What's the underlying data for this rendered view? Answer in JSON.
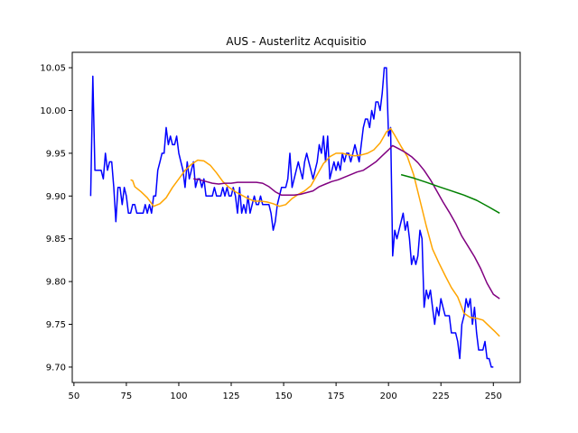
{
  "chart_data": {
    "type": "line",
    "title": "AUS - Austerlitz Acquisitio",
    "xlabel": "",
    "ylabel": "",
    "xlim": [
      49.2,
      262.8
    ],
    "ylim": [
      9.682,
      10.068
    ],
    "x_ticks": [
      50,
      75,
      100,
      125,
      150,
      175,
      200,
      225,
      250
    ],
    "y_ticks": [
      9.7,
      9.75,
      9.8,
      9.85,
      9.9,
      9.95,
      10.0,
      10.05
    ],
    "x_tick_labels": [
      "50",
      "75",
      "100",
      "125",
      "150",
      "175",
      "200",
      "225",
      "250"
    ],
    "y_tick_labels": [
      "9.70",
      "9.75",
      "9.80",
      "9.85",
      "9.90",
      "9.95",
      "10.00",
      "10.05"
    ],
    "grid": false,
    "legend": "none",
    "series": [
      {
        "color": "#0000ff",
        "points": [
          [
            58,
            9.9
          ],
          [
            59,
            10.04
          ],
          [
            60,
            9.93
          ],
          [
            61,
            9.93
          ],
          [
            62,
            9.93
          ],
          [
            63,
            9.93
          ],
          [
            64,
            9.92
          ],
          [
            65,
            9.95
          ],
          [
            66,
            9.93
          ],
          [
            67,
            9.94
          ],
          [
            68,
            9.94
          ],
          [
            69,
            9.91
          ],
          [
            70,
            9.87
          ],
          [
            71,
            9.91
          ],
          [
            72,
            9.91
          ],
          [
            73,
            9.89
          ],
          [
            74,
            9.91
          ],
          [
            75,
            9.9
          ],
          [
            76,
            9.88
          ],
          [
            77,
            9.88
          ],
          [
            78,
            9.89
          ],
          [
            79,
            9.89
          ],
          [
            80,
            9.88
          ],
          [
            81,
            9.88
          ],
          [
            82,
            9.88
          ],
          [
            83,
            9.88
          ],
          [
            84,
            9.89
          ],
          [
            85,
            9.88
          ],
          [
            86,
            9.89
          ],
          [
            87,
            9.88
          ],
          [
            88,
            9.9
          ],
          [
            89,
            9.9
          ],
          [
            90,
            9.93
          ],
          [
            91,
            9.94
          ],
          [
            92,
            9.95
          ],
          [
            93,
            9.95
          ],
          [
            94,
            9.98
          ],
          [
            95,
            9.96
          ],
          [
            96,
            9.97
          ],
          [
            97,
            9.96
          ],
          [
            98,
            9.96
          ],
          [
            99,
            9.97
          ],
          [
            100,
            9.95
          ],
          [
            101,
            9.94
          ],
          [
            102,
            9.93
          ],
          [
            103,
            9.91
          ],
          [
            104,
            9.94
          ],
          [
            105,
            9.92
          ],
          [
            106,
            9.93
          ],
          [
            107,
            9.94
          ],
          [
            108,
            9.91
          ],
          [
            109,
            9.92
          ],
          [
            110,
            9.92
          ],
          [
            111,
            9.91
          ],
          [
            112,
            9.92
          ],
          [
            113,
            9.9
          ],
          [
            114,
            9.9
          ],
          [
            115,
            9.9
          ],
          [
            116,
            9.9
          ],
          [
            117,
            9.91
          ],
          [
            118,
            9.9
          ],
          [
            119,
            9.9
          ],
          [
            120,
            9.9
          ],
          [
            121,
            9.91
          ],
          [
            122,
            9.9
          ],
          [
            123,
            9.91
          ],
          [
            124,
            9.9
          ],
          [
            125,
            9.9
          ],
          [
            126,
            9.91
          ],
          [
            127,
            9.9
          ],
          [
            128,
            9.88
          ],
          [
            129,
            9.91
          ],
          [
            130,
            9.88
          ],
          [
            131,
            9.89
          ],
          [
            132,
            9.88
          ],
          [
            133,
            9.9
          ],
          [
            134,
            9.88
          ],
          [
            135,
            9.89
          ],
          [
            136,
            9.9
          ],
          [
            137,
            9.89
          ],
          [
            138,
            9.89
          ],
          [
            139,
            9.9
          ],
          [
            140,
            9.89
          ],
          [
            141,
            9.89
          ],
          [
            142,
            9.89
          ],
          [
            143,
            9.89
          ],
          [
            144,
            9.88
          ],
          [
            145,
            9.86
          ],
          [
            146,
            9.87
          ],
          [
            147,
            9.89
          ],
          [
            148,
            9.9
          ],
          [
            149,
            9.91
          ],
          [
            150,
            9.91
          ],
          [
            151,
            9.91
          ],
          [
            152,
            9.92
          ],
          [
            153,
            9.95
          ],
          [
            154,
            9.91
          ],
          [
            155,
            9.92
          ],
          [
            156,
            9.93
          ],
          [
            157,
            9.94
          ],
          [
            158,
            9.93
          ],
          [
            159,
            9.92
          ],
          [
            160,
            9.94
          ],
          [
            161,
            9.95
          ],
          [
            162,
            9.94
          ],
          [
            163,
            9.93
          ],
          [
            164,
            9.92
          ],
          [
            165,
            9.93
          ],
          [
            166,
            9.94
          ],
          [
            167,
            9.96
          ],
          [
            168,
            9.95
          ],
          [
            169,
            9.97
          ],
          [
            170,
            9.94
          ],
          [
            171,
            9.97
          ],
          [
            172,
            9.92
          ],
          [
            173,
            9.93
          ],
          [
            174,
            9.94
          ],
          [
            175,
            9.93
          ],
          [
            176,
            9.94
          ],
          [
            177,
            9.93
          ],
          [
            178,
            9.95
          ],
          [
            179,
            9.94
          ],
          [
            180,
            9.95
          ],
          [
            181,
            9.95
          ],
          [
            182,
            9.94
          ],
          [
            183,
            9.95
          ],
          [
            184,
            9.96
          ],
          [
            185,
            9.95
          ],
          [
            186,
            9.94
          ],
          [
            187,
            9.96
          ],
          [
            188,
            9.98
          ],
          [
            189,
            9.99
          ],
          [
            190,
            9.99
          ],
          [
            191,
            9.98
          ],
          [
            192,
            10.0
          ],
          [
            193,
            9.99
          ],
          [
            194,
            10.01
          ],
          [
            195,
            10.01
          ],
          [
            196,
            10.0
          ],
          [
            197,
            10.02
          ],
          [
            198,
            10.05
          ],
          [
            199,
            10.05
          ],
          [
            200,
            9.97
          ],
          [
            201,
            9.98
          ],
          [
            202,
            9.83
          ],
          [
            203,
            9.86
          ],
          [
            204,
            9.85
          ],
          [
            205,
            9.86
          ],
          [
            206,
            9.87
          ],
          [
            207,
            9.88
          ],
          [
            208,
            9.86
          ],
          [
            209,
            9.87
          ],
          [
            210,
            9.85
          ],
          [
            211,
            9.82
          ],
          [
            212,
            9.83
          ],
          [
            213,
            9.82
          ],
          [
            214,
            9.83
          ],
          [
            215,
            9.86
          ],
          [
            216,
            9.85
          ],
          [
            217,
            9.77
          ],
          [
            218,
            9.79
          ],
          [
            219,
            9.78
          ],
          [
            220,
            9.79
          ],
          [
            221,
            9.77
          ],
          [
            222,
            9.75
          ],
          [
            223,
            9.77
          ],
          [
            224,
            9.76
          ],
          [
            225,
            9.78
          ],
          [
            226,
            9.77
          ],
          [
            227,
            9.76
          ],
          [
            228,
            9.76
          ],
          [
            229,
            9.76
          ],
          [
            230,
            9.74
          ],
          [
            231,
            9.74
          ],
          [
            232,
            9.74
          ],
          [
            233,
            9.73
          ],
          [
            234,
            9.71
          ],
          [
            235,
            9.75
          ],
          [
            236,
            9.76
          ],
          [
            237,
            9.78
          ],
          [
            238,
            9.77
          ],
          [
            239,
            9.78
          ],
          [
            240,
            9.75
          ],
          [
            241,
            9.77
          ],
          [
            242,
            9.74
          ],
          [
            243,
            9.72
          ],
          [
            244,
            9.72
          ],
          [
            245,
            9.72
          ],
          [
            246,
            9.73
          ],
          [
            247,
            9.71
          ],
          [
            248,
            9.71
          ],
          [
            249,
            9.7
          ],
          [
            250,
            9.7
          ]
        ]
      },
      {
        "color": "#ffa500",
        "points": [
          [
            77,
            9.919
          ],
          [
            78,
            9.918
          ],
          [
            79,
            9.911
          ],
          [
            82,
            9.905
          ],
          [
            85,
            9.898
          ],
          [
            88,
            9.888
          ],
          [
            91,
            9.891
          ],
          [
            94,
            9.898
          ],
          [
            97,
            9.91
          ],
          [
            100,
            9.92
          ],
          [
            103,
            9.93
          ],
          [
            106,
            9.937
          ],
          [
            109,
            9.942
          ],
          [
            112,
            9.941
          ],
          [
            115,
            9.936
          ],
          [
            118,
            9.927
          ],
          [
            121,
            9.917
          ],
          [
            124,
            9.91
          ],
          [
            127,
            9.905
          ],
          [
            130,
            9.901
          ],
          [
            133,
            9.897
          ],
          [
            136,
            9.894
          ],
          [
            139,
            9.894
          ],
          [
            142,
            9.893
          ],
          [
            145,
            9.891
          ],
          [
            148,
            9.888
          ],
          [
            151,
            9.89
          ],
          [
            154,
            9.897
          ],
          [
            157,
            9.902
          ],
          [
            160,
            9.906
          ],
          [
            163,
            9.912
          ],
          [
            166,
            9.925
          ],
          [
            169,
            9.938
          ],
          [
            172,
            9.946
          ],
          [
            175,
            9.95
          ],
          [
            178,
            9.95
          ],
          [
            181,
            9.948
          ],
          [
            184,
            9.947
          ],
          [
            187,
            9.948
          ],
          [
            190,
            9.95
          ],
          [
            193,
            9.954
          ],
          [
            196,
            9.962
          ],
          [
            199,
            9.975
          ],
          [
            201,
            9.979
          ],
          [
            203,
            9.971
          ],
          [
            206,
            9.958
          ],
          [
            209,
            9.946
          ],
          [
            212,
            9.925
          ],
          [
            215,
            9.895
          ],
          [
            218,
            9.865
          ],
          [
            221,
            9.838
          ],
          [
            224,
            9.822
          ],
          [
            227,
            9.807
          ],
          [
            230,
            9.793
          ],
          [
            233,
            9.782
          ],
          [
            236,
            9.763
          ],
          [
            239,
            9.758
          ],
          [
            242,
            9.757
          ],
          [
            245,
            9.755
          ],
          [
            248,
            9.748
          ],
          [
            251,
            9.741
          ],
          [
            253,
            9.736
          ]
        ]
      },
      {
        "color": "#800080",
        "points": [
          [
            107,
            9.92
          ],
          [
            110,
            9.919
          ],
          [
            113,
            9.917
          ],
          [
            116,
            9.915
          ],
          [
            119,
            9.914
          ],
          [
            122,
            9.915
          ],
          [
            125,
            9.915
          ],
          [
            128,
            9.916
          ],
          [
            131,
            9.916
          ],
          [
            134,
            9.916
          ],
          [
            137,
            9.916
          ],
          [
            140,
            9.915
          ],
          [
            143,
            9.911
          ],
          [
            146,
            9.905
          ],
          [
            149,
            9.901
          ],
          [
            152,
            9.901
          ],
          [
            155,
            9.901
          ],
          [
            158,
            9.902
          ],
          [
            161,
            9.904
          ],
          [
            164,
            9.906
          ],
          [
            167,
            9.911
          ],
          [
            170,
            9.914
          ],
          [
            173,
            9.917
          ],
          [
            176,
            9.919
          ],
          [
            179,
            9.922
          ],
          [
            182,
            9.925
          ],
          [
            185,
            9.928
          ],
          [
            188,
            9.93
          ],
          [
            191,
            9.935
          ],
          [
            194,
            9.94
          ],
          [
            197,
            9.947
          ],
          [
            200,
            9.954
          ],
          [
            202,
            9.959
          ],
          [
            205,
            9.955
          ],
          [
            208,
            9.951
          ],
          [
            211,
            9.946
          ],
          [
            214,
            9.939
          ],
          [
            217,
            9.93
          ],
          [
            220,
            9.919
          ],
          [
            223,
            9.906
          ],
          [
            226,
            9.893
          ],
          [
            229,
            9.881
          ],
          [
            232,
            9.868
          ],
          [
            235,
            9.853
          ],
          [
            238,
            9.841
          ],
          [
            241,
            9.829
          ],
          [
            244,
            9.815
          ],
          [
            247,
            9.798
          ],
          [
            250,
            9.785
          ],
          [
            253,
            9.78
          ]
        ]
      },
      {
        "color": "#008000",
        "points": [
          [
            206,
            9.925
          ],
          [
            212,
            9.921
          ],
          [
            218,
            9.916
          ],
          [
            224,
            9.911
          ],
          [
            230,
            9.906
          ],
          [
            236,
            9.901
          ],
          [
            242,
            9.895
          ],
          [
            248,
            9.887
          ],
          [
            253,
            9.88
          ]
        ]
      }
    ]
  }
}
